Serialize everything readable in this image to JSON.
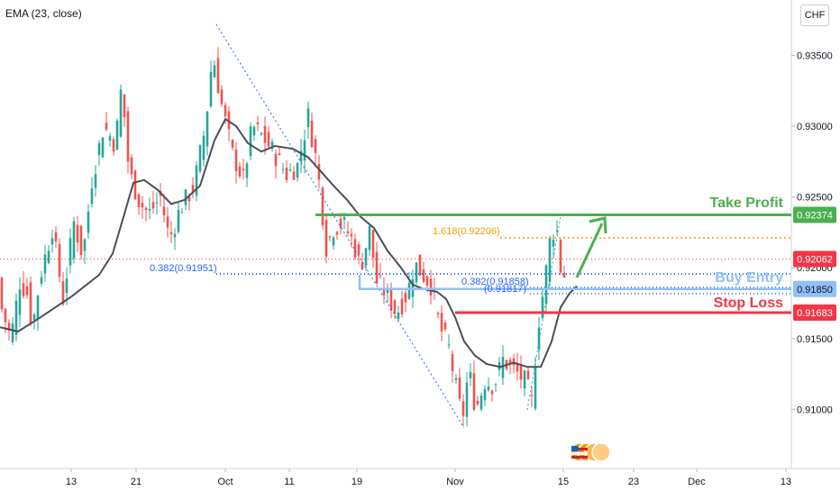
{
  "indicator": {
    "label": "EMA (23, close)"
  },
  "currency": "CHF",
  "colors": {
    "up": "#26a69a",
    "down": "#ef5350",
    "ema": "#4a4e5a",
    "take_profit": "#4caf50",
    "stop_loss": "#f23645",
    "entry": "#90bff9",
    "fib_blue": "#2962ff",
    "fib_orange": "#ff9800",
    "last_price": "#f23645"
  },
  "chart_data": {
    "type": "candlestick",
    "y_axis": {
      "min": 0.9085,
      "max": 0.937,
      "ticks": [
        0.935,
        0.93,
        0.925,
        0.92,
        0.915,
        0.91
      ],
      "tick_labels": [
        "0.93500",
        "0.93000",
        "0.92500",
        "0.92000",
        "0.91500",
        "0.91000"
      ]
    },
    "x_axis": {
      "labels": [
        "13",
        "21",
        "Oct",
        "11",
        "19",
        "Nov",
        "15",
        "23",
        "Dec",
        "13"
      ]
    },
    "anchors": [
      [
        0,
        0.9175
      ],
      [
        12,
        0.915
      ],
      [
        22,
        0.919
      ],
      [
        30,
        0.9182
      ],
      [
        36,
        0.9158
      ],
      [
        45,
        0.9195
      ],
      [
        58,
        0.9228
      ],
      [
        70,
        0.9178
      ],
      [
        82,
        0.9232
      ],
      [
        92,
        0.9208
      ],
      [
        102,
        0.9262
      ],
      [
        115,
        0.93
      ],
      [
        128,
        0.9287
      ],
      [
        135,
        0.933
      ],
      [
        143,
        0.9268
      ],
      [
        155,
        0.9246
      ],
      [
        165,
        0.9238
      ],
      [
        178,
        0.925
      ],
      [
        188,
        0.922
      ],
      [
        200,
        0.9242
      ],
      [
        215,
        0.9257
      ],
      [
        228,
        0.93
      ],
      [
        236,
        0.9352
      ],
      [
        245,
        0.9318
      ],
      [
        258,
        0.928
      ],
      [
        270,
        0.9262
      ],
      [
        280,
        0.93
      ],
      [
        292,
        0.9292
      ],
      [
        305,
        0.928
      ],
      [
        318,
        0.9266
      ],
      [
        330,
        0.9272
      ],
      [
        342,
        0.9307
      ],
      [
        352,
        0.9272
      ],
      [
        362,
        0.9215
      ],
      [
        370,
        0.9228
      ],
      [
        380,
        0.9232
      ],
      [
        392,
        0.9218
      ],
      [
        400,
        0.92
      ],
      [
        410,
        0.9226
      ],
      [
        418,
        0.919
      ],
      [
        428,
        0.9182
      ],
      [
        440,
        0.9168
      ],
      [
        452,
        0.9182
      ],
      [
        460,
        0.9203
      ],
      [
        468,
        0.9196
      ],
      [
        478,
        0.9188
      ],
      [
        488,
        0.9158
      ],
      [
        498,
        0.9143
      ],
      [
        505,
        0.9118
      ],
      [
        513,
        0.9093
      ],
      [
        520,
        0.9128
      ],
      [
        528,
        0.91
      ],
      [
        538,
        0.912
      ],
      [
        548,
        0.9117
      ],
      [
        558,
        0.9135
      ],
      [
        566,
        0.913
      ],
      [
        575,
        0.9125
      ],
      [
        584,
        0.9118
      ],
      [
        590,
        0.9105
      ],
      [
        597,
        0.916
      ],
      [
        604,
        0.9188
      ],
      [
        610,
        0.9218
      ],
      [
        617,
        0.9232
      ],
      [
        622,
        0.92
      ],
      [
        628,
        0.9192
      ]
    ],
    "ema_points": [
      [
        0,
        0.9158
      ],
      [
        20,
        0.9155
      ],
      [
        45,
        0.9165
      ],
      [
        80,
        0.918
      ],
      [
        110,
        0.9195
      ],
      [
        125,
        0.921
      ],
      [
        138,
        0.9238
      ],
      [
        148,
        0.926
      ],
      [
        160,
        0.9262
      ],
      [
        175,
        0.9255
      ],
      [
        190,
        0.9245
      ],
      [
        205,
        0.9248
      ],
      [
        222,
        0.9258
      ],
      [
        238,
        0.929
      ],
      [
        250,
        0.9305
      ],
      [
        262,
        0.93
      ],
      [
        275,
        0.9288
      ],
      [
        290,
        0.9282
      ],
      [
        305,
        0.9286
      ],
      [
        325,
        0.9284
      ],
      [
        342,
        0.9278
      ],
      [
        356,
        0.9268
      ],
      [
        370,
        0.9258
      ],
      [
        385,
        0.9248
      ],
      [
        400,
        0.9236
      ],
      [
        415,
        0.9228
      ],
      [
        430,
        0.9212
      ],
      [
        445,
        0.92
      ],
      [
        458,
        0.9188
      ],
      [
        470,
        0.9185
      ],
      [
        485,
        0.9183
      ],
      [
        495,
        0.9178
      ],
      [
        505,
        0.9165
      ],
      [
        515,
        0.9148
      ],
      [
        527,
        0.9138
      ],
      [
        540,
        0.9132
      ],
      [
        555,
        0.913
      ],
      [
        570,
        0.9133
      ],
      [
        585,
        0.913
      ],
      [
        600,
        0.913
      ],
      [
        612,
        0.9148
      ],
      [
        622,
        0.9172
      ],
      [
        632,
        0.9182
      ],
      [
        640,
        0.9187
      ]
    ],
    "levels": {
      "take_profit": {
        "label": "Take Profit",
        "value": 0.92374,
        "value_label": "0.92374"
      },
      "buy_entry": {
        "label": "Buy Entry",
        "value": 0.9185,
        "value_label": "0.91850"
      },
      "stop_loss": {
        "label": "Stop Loss",
        "value": 0.91683,
        "value_label": "0.91683"
      },
      "last_price": {
        "value": 0.92062,
        "value_label": "0.92062"
      }
    },
    "annotations": {
      "fib_1": "0.382(0.91951)",
      "fib_2": "0.382(0.91858)",
      "fib_3": "(0.91817)",
      "fib_ext": "1.618(0.92206)"
    }
  }
}
